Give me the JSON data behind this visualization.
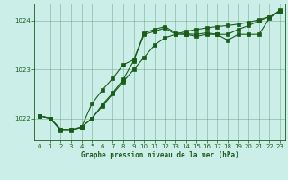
{
  "title": "Graphe pression niveau de la mer (hPa)",
  "background_color": "#cceee8",
  "grid_color": "#4a8c5c",
  "line_color": "#1a5c1a",
  "xlim": [
    -0.5,
    23.5
  ],
  "ylim": [
    1021.55,
    1024.35
  ],
  "yticks": [
    1022,
    1023,
    1024
  ],
  "xticks": [
    0,
    1,
    2,
    3,
    4,
    5,
    6,
    7,
    8,
    9,
    10,
    11,
    12,
    13,
    14,
    15,
    16,
    17,
    18,
    19,
    20,
    21,
    22,
    23
  ],
  "line1_x": [
    0,
    1,
    2,
    3,
    4,
    5,
    6,
    7,
    8,
    9,
    10,
    11,
    12,
    13,
    14,
    15,
    16,
    17,
    18,
    19,
    20,
    21,
    22,
    23
  ],
  "line1_y": [
    1022.05,
    1022.0,
    1021.78,
    1021.77,
    1021.82,
    1022.0,
    1022.25,
    1022.5,
    1022.75,
    1023.0,
    1023.25,
    1023.5,
    1023.65,
    1023.72,
    1023.78,
    1023.82,
    1023.85,
    1023.88,
    1023.9,
    1023.93,
    1023.97,
    1024.02,
    1024.08,
    1024.2
  ],
  "line2_x": [
    0,
    1,
    2,
    3,
    4,
    5,
    6,
    7,
    8,
    9,
    10,
    11,
    12,
    13,
    14,
    15,
    16,
    17,
    18,
    19,
    20,
    21,
    22,
    23
  ],
  "line2_y": [
    1022.05,
    1022.0,
    1021.78,
    1021.77,
    1021.82,
    1022.3,
    1022.58,
    1022.82,
    1023.1,
    1023.2,
    1023.75,
    1023.82,
    1023.88,
    1023.75,
    1023.73,
    1023.72,
    1023.75,
    1023.72,
    1023.6,
    1023.72,
    1023.72,
    1023.72,
    1024.05,
    1024.22
  ],
  "line3_x": [
    0,
    1,
    2,
    3,
    4,
    5,
    6,
    7,
    8,
    9,
    10,
    11,
    12,
    13,
    14,
    15,
    16,
    17,
    18,
    19,
    20,
    21,
    22,
    23
  ],
  "line3_y": [
    1022.05,
    1022.0,
    1021.75,
    1021.75,
    1021.82,
    1022.0,
    1022.28,
    1022.52,
    1022.8,
    1023.18,
    1023.72,
    1023.78,
    1023.85,
    1023.72,
    1023.72,
    1023.68,
    1023.72,
    1023.72,
    1023.72,
    1023.82,
    1023.9,
    1024.0,
    1024.08,
    1024.18
  ]
}
